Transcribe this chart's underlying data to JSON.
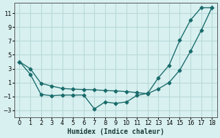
{
  "xlabel": "Humidex (Indice chaleur)",
  "bg_color": "#d8f0f0",
  "grid_color": "#b8d8d8",
  "line_color": "#1a6b6b",
  "line1_x": [
    0,
    1,
    2,
    3,
    4,
    5,
    6,
    7,
    8,
    9,
    10,
    11,
    12,
    13,
    14,
    15,
    16,
    17,
    18
  ],
  "line1_y": [
    4.0,
    2.2,
    -0.7,
    -0.9,
    -0.8,
    -0.8,
    -0.8,
    -2.8,
    -1.8,
    -2.0,
    -1.8,
    -0.85,
    -0.55,
    1.7,
    3.5,
    7.1,
    10.0,
    11.8,
    11.8
  ],
  "line2_x": [
    0,
    1,
    2,
    3,
    4,
    5,
    6,
    7,
    8,
    9,
    10,
    11,
    12,
    13,
    14,
    15,
    16,
    17,
    18
  ],
  "line2_y": [
    4.0,
    3.0,
    0.9,
    0.5,
    0.15,
    0.05,
    0.0,
    -0.05,
    -0.15,
    -0.2,
    -0.3,
    -0.45,
    -0.6,
    0.1,
    1.0,
    2.8,
    5.5,
    8.5,
    11.8
  ],
  "xlim": [
    -0.5,
    18.5
  ],
  "ylim": [
    -4,
    12.5
  ],
  "yticks": [
    -3,
    -1,
    1,
    3,
    5,
    7,
    9,
    11
  ],
  "xticks": [
    0,
    1,
    2,
    3,
    4,
    5,
    6,
    7,
    8,
    9,
    10,
    11,
    12,
    13,
    14,
    15,
    16,
    17,
    18
  ]
}
